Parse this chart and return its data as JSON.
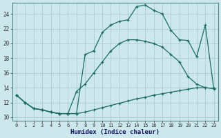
{
  "xlabel": "Humidex (Indice chaleur)",
  "bg_color": "#cce8ec",
  "grid_color": "#aaccd4",
  "line_color": "#1a6b60",
  "xlim": [
    -0.5,
    23.5
  ],
  "ylim": [
    9.5,
    25.5
  ],
  "xticks": [
    0,
    1,
    2,
    3,
    4,
    5,
    6,
    7,
    8,
    9,
    10,
    11,
    12,
    13,
    14,
    15,
    16,
    17,
    18,
    19,
    20,
    21,
    22,
    23
  ],
  "yticks": [
    10,
    12,
    14,
    16,
    18,
    20,
    22,
    24
  ],
  "series1_x": [
    0,
    1,
    2,
    3,
    4,
    5,
    6,
    7,
    8,
    9,
    10,
    11,
    12,
    13,
    14,
    15,
    16,
    17,
    18,
    19,
    20,
    21,
    22,
    23
  ],
  "series1_y": [
    13.0,
    12.0,
    11.2,
    11.0,
    10.7,
    10.5,
    10.5,
    10.5,
    10.7,
    11.0,
    11.3,
    11.6,
    11.9,
    12.2,
    12.5,
    12.7,
    13.0,
    13.2,
    13.4,
    13.6,
    13.8,
    14.0,
    14.0,
    13.9
  ],
  "series2_x": [
    0,
    1,
    2,
    3,
    4,
    5,
    6,
    7,
    8,
    9,
    10,
    11,
    12,
    13,
    14,
    15,
    16,
    17,
    18,
    19,
    20,
    21,
    22,
    23
  ],
  "series2_y": [
    13.0,
    12.0,
    11.2,
    11.0,
    10.7,
    10.5,
    10.5,
    13.5,
    14.5,
    16.0,
    17.5,
    19.0,
    20.0,
    20.5,
    20.5,
    20.3,
    20.0,
    19.5,
    18.5,
    17.5,
    15.5,
    14.5,
    14.0,
    13.9
  ],
  "series3_x": [
    0,
    1,
    2,
    3,
    4,
    5,
    6,
    7,
    8,
    9,
    10,
    11,
    12,
    13,
    14,
    15,
    16,
    17,
    18,
    19,
    20,
    21,
    22,
    23
  ],
  "series3_y": [
    13.0,
    12.0,
    11.2,
    11.0,
    10.7,
    10.5,
    10.5,
    10.5,
    18.5,
    19.0,
    21.5,
    22.5,
    23.0,
    23.2,
    25.0,
    25.2,
    24.5,
    24.0,
    21.8,
    20.5,
    20.4,
    18.2,
    22.5,
    13.8
  ]
}
